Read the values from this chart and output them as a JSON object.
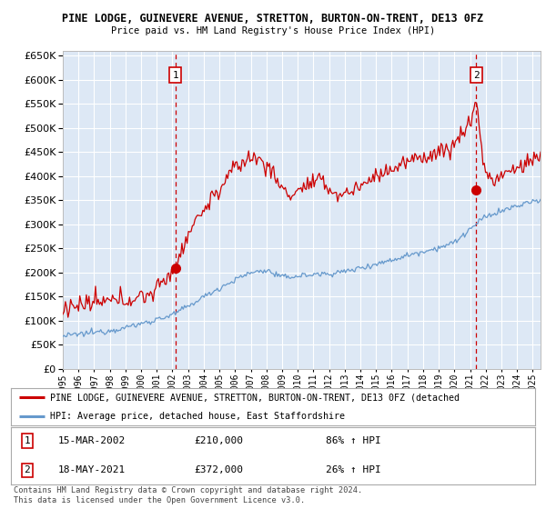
{
  "title": "PINE LODGE, GUINEVERE AVENUE, STRETTON, BURTON-ON-TRENT, DE13 0FZ",
  "subtitle": "Price paid vs. HM Land Registry's House Price Index (HPI)",
  "red_label": "PINE LODGE, GUINEVERE AVENUE, STRETTON, BURTON-ON-TRENT, DE13 0FZ (detached",
  "blue_label": "HPI: Average price, detached house, East Staffordshire",
  "transaction1_date": "15-MAR-2002",
  "transaction1_price": "£210,000",
  "transaction1_hpi": "86% ↑ HPI",
  "transaction2_date": "18-MAY-2021",
  "transaction2_price": "£372,000",
  "transaction2_hpi": "26% ↑ HPI",
  "footer": "Contains HM Land Registry data © Crown copyright and database right 2024.\nThis data is licensed under the Open Government Licence v3.0.",
  "ylim": [
    0,
    660000
  ],
  "yticks": [
    0,
    50000,
    100000,
    150000,
    200000,
    250000,
    300000,
    350000,
    400000,
    450000,
    500000,
    550000,
    600000,
    650000
  ],
  "background_color": "#dde8f5",
  "grid_color": "#ffffff",
  "red_color": "#cc0000",
  "blue_color": "#6699cc",
  "marker1_x": 2002.2,
  "marker1_y": 210000,
  "marker2_x": 2021.38,
  "marker2_y": 372000,
  "xlim_left": 1995,
  "xlim_right": 2025.5
}
